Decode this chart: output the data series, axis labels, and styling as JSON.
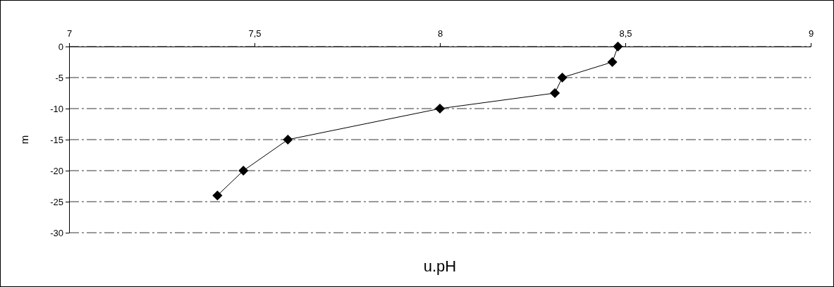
{
  "chart_data": {
    "type": "line",
    "xlabel": "u.pH",
    "ylabel": "m",
    "xlim": [
      7,
      9
    ],
    "xticks": [
      7,
      {
        "value": 7.5,
        "label": "7,5"
      },
      8,
      {
        "value": 8.5,
        "label": "8,5"
      },
      9
    ],
    "ylim": [
      -30,
      0
    ],
    "yticks": [
      -30,
      -25,
      -20,
      -15,
      -10,
      -5,
      0
    ],
    "grid": "y",
    "marker": "diamond",
    "line_style": "solid",
    "series": [
      {
        "color": "#000000",
        "x": [
          8.48,
          8.465,
          8.33,
          8.31,
          8.0,
          7.59,
          7.47,
          7.4
        ],
        "values": [
          0,
          -2.5,
          -5,
          -7.5,
          -10,
          -15,
          -20,
          -24
        ]
      }
    ]
  }
}
